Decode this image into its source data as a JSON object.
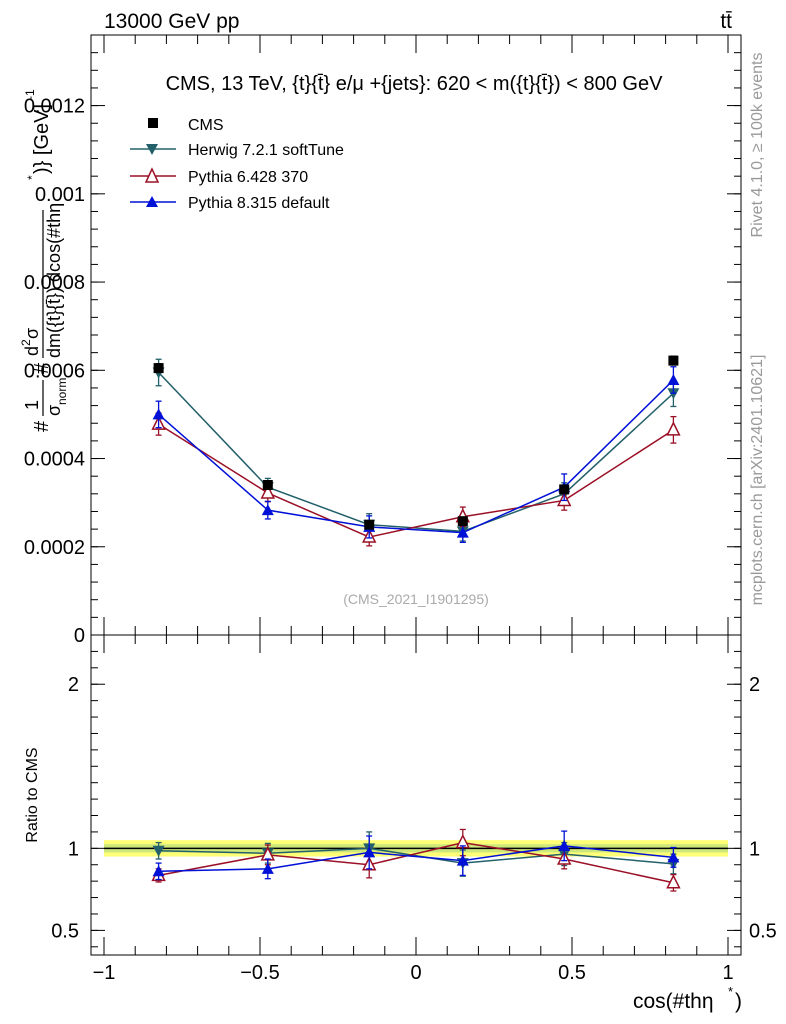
{
  "header": {
    "energy_label": "13000 GeV pp",
    "process_label": "tt̄",
    "side_rivet": "Rivet 4.1.0, ≥ 100k events",
    "side_source": "mcplots.cern.ch [arXiv:2401.10621]",
    "watermark": "(CMS_2021_I1901295)"
  },
  "colors": {
    "cms": "#000000",
    "herwig": "#23606a",
    "pythia6": "#9b1026",
    "pythia8": "#0010d6",
    "band_inner": "#cde77a",
    "band_outer": "#ffff77"
  },
  "chart_data": [
    {
      "type": "line",
      "title": "CMS, 13 TeV, {t}{t̄} e/μ +{jets}: 620 < m({t}{t̄}) < 800 GeV",
      "ylabel": "#1/σnorm # d²σ/dm({t}{t̄}) dcos(#thη*)} [GeV]⁻¹",
      "ylabel_parts": {
        "hash1": "#",
        "frac_num": "1",
        "frac_den": "σ",
        "frac_den_sub": "norm",
        "hash2": "#",
        "d2_d": "d",
        "d2_sup": "2",
        "d2_sigma": "σ",
        "denominator": "dm({t}{t̄}) dcos(#thη",
        "star": "*",
        "unit": ")} [GeV]",
        "unit_sup": "-1"
      },
      "ylim": [
        0,
        0.00136
      ],
      "yticks": [
        0,
        0.0002,
        0.0004,
        0.0006,
        0.0008,
        0.001,
        0.0012
      ],
      "ytick_labels": [
        "0",
        "0.0002",
        "0.0004",
        "0.0006",
        "0.0008",
        "0.001",
        "0.0012"
      ],
      "xlim": [
        -1,
        1
      ],
      "x": [
        -0.825,
        -0.475,
        -0.15,
        0.15,
        0.475,
        0.825
      ],
      "legend_position": "top-left",
      "series": [
        {
          "name": "CMS",
          "marker": "square",
          "values": [
            0.000605,
            0.00034,
            0.00025,
            0.000258,
            0.00033,
            0.000622
          ],
          "errors": [
            1e-05,
            8e-06,
            6e-06,
            6e-06,
            8e-06,
            1e-05
          ]
        },
        {
          "name": "Herwig 7.2.1 softTune",
          "marker": "triangle-down",
          "values": [
            0.000595,
            0.000335,
            0.00025,
            0.000235,
            0.00032,
            0.000548
          ],
          "errors": [
            3e-05,
            2e-05,
            2.5e-05,
            2.2e-05,
            2.5e-05,
            3e-05
          ]
        },
        {
          "name": "Pythia 6.428 370",
          "marker": "triangle-open",
          "values": [
            0.000478,
            0.000322,
            0.000222,
            0.000268,
            0.000305,
            0.000465
          ],
          "errors": [
            2.5e-05,
            2e-05,
            2e-05,
            2.2e-05,
            2.2e-05,
            3e-05
          ]
        },
        {
          "name": "Pythia 8.315 default",
          "marker": "triangle-up",
          "values": [
            0.0005,
            0.000283,
            0.000245,
            0.000232,
            0.000335,
            0.000578
          ],
          "errors": [
            3e-05,
            2e-05,
            2.5e-05,
            2.2e-05,
            3e-05,
            3e-05
          ]
        }
      ]
    },
    {
      "type": "line",
      "ylabel": "Ratio to CMS",
      "xlabel": "cos(#thη*)",
      "xlabel_main": "cos(#thη",
      "xlabel_star": "*",
      "xlabel_tail": ")",
      "ylim": [
        0.35,
        2.3
      ],
      "yticks": [
        0.5,
        1,
        2
      ],
      "ytick_labels": [
        "0.5",
        "1",
        "2"
      ],
      "xlim": [
        -1,
        1
      ],
      "xticks": [
        -1,
        -0.5,
        0,
        0.5,
        1
      ],
      "xtick_labels": [
        "−1",
        "−0.5",
        "0",
        "0.5",
        "1"
      ],
      "x": [
        -0.825,
        -0.475,
        -0.15,
        0.15,
        0.475,
        0.825
      ],
      "band": {
        "inner": 0.025,
        "outer": 0.05
      },
      "series": [
        {
          "name": "Herwig 7.2.1 softTune",
          "values": [
            0.985,
            0.97,
            1.0,
            0.91,
            0.965,
            0.905
          ],
          "errors": [
            0.05,
            0.06,
            0.1,
            0.08,
            0.07,
            0.06
          ]
        },
        {
          "name": "Pythia 6.428 370",
          "values": [
            0.835,
            0.96,
            0.9,
            1.035,
            0.935,
            0.79
          ],
          "errors": [
            0.04,
            0.06,
            0.08,
            0.08,
            0.06,
            0.05
          ]
        },
        {
          "name": "Pythia 8.315 default",
          "values": [
            0.86,
            0.875,
            0.975,
            0.925,
            1.015,
            0.945
          ],
          "errors": [
            0.05,
            0.06,
            0.1,
            0.09,
            0.09,
            0.06
          ]
        }
      ]
    }
  ]
}
